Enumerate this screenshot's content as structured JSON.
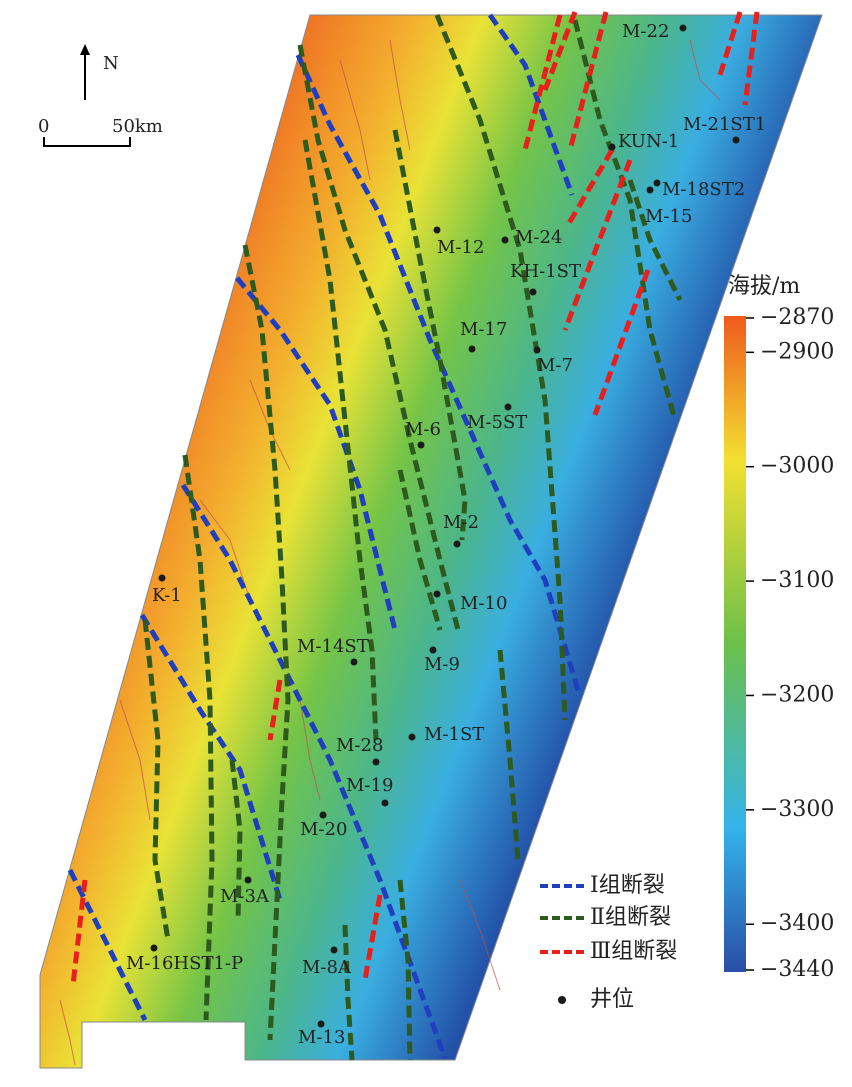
{
  "north": "N",
  "scale_bar": {
    "start": "0",
    "end": "50km"
  },
  "colorbar": {
    "title": "海拔/m",
    "range": [
      -3440,
      -2870
    ],
    "ticks": [
      {
        "value": -2870,
        "label": "−2870"
      },
      {
        "value": -2900,
        "label": "−2900"
      },
      {
        "value": -3000,
        "label": "−3000"
      },
      {
        "value": -3100,
        "label": "−3100"
      },
      {
        "value": -3200,
        "label": "−3200"
      },
      {
        "value": -3300,
        "label": "−3300"
      },
      {
        "value": -3400,
        "label": "−3400"
      },
      {
        "value": -3440,
        "label": "−3440"
      }
    ]
  },
  "legend": [
    {
      "label": "Ⅰ组断裂",
      "color": "#1f3fbf"
    },
    {
      "label": "Ⅱ组断裂",
      "color": "#2d5a1e"
    },
    {
      "label": "Ⅲ组断裂",
      "color": "#e8201c"
    },
    {
      "label": "井位",
      "color": "#1a1a1a"
    }
  ],
  "wells": [
    "M-22",
    "M-21ST1",
    "KUN-1",
    "M-18ST2",
    "M-15",
    "M-12",
    "M-24",
    "KH-1ST",
    "M-17",
    "M-7",
    "M-6",
    "M-5ST",
    "M-2",
    "K-1",
    "M-10",
    "M-9",
    "M-14ST",
    "M-1ST",
    "M-28",
    "M-19",
    "M-20",
    "M-3A",
    "M-16HST1-P",
    "M-8A",
    "M-13"
  ]
}
